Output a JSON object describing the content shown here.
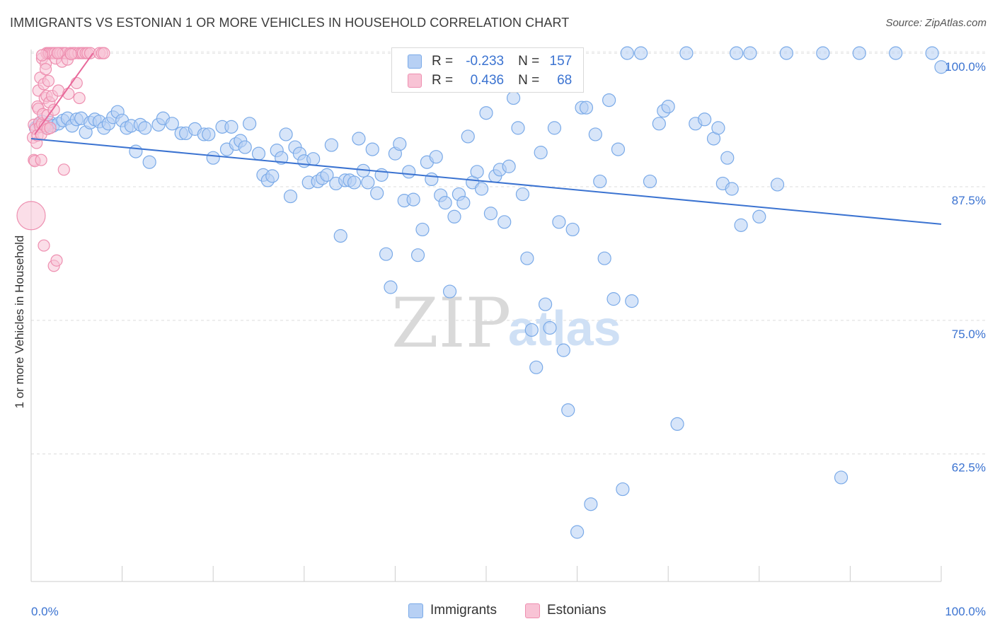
{
  "header": {
    "title": "IMMIGRANTS VS ESTONIAN 1 OR MORE VEHICLES IN HOUSEHOLD CORRELATION CHART",
    "source": "Source: ZipAtlas.com"
  },
  "watermark": {
    "zip": "ZIP",
    "atlas": "atlas"
  },
  "legend": {
    "rows": [
      {
        "r_label": "R =",
        "r_value": "-0.233",
        "n_label": "N =",
        "n_value": "157",
        "color": "#7aaae8",
        "fill": "#b7d0f4"
      },
      {
        "r_label": "R =",
        "r_value": "0.436",
        "n_label": "N =",
        "n_value": "68",
        "color": "#ee8fb0",
        "fill": "#f8c3d5"
      }
    ]
  },
  "bottom_legend": [
    {
      "label": "Immigrants",
      "color": "#7aaae8",
      "fill": "#b7d0f4"
    },
    {
      "label": "Estonians",
      "color": "#ee8fb0",
      "fill": "#f8c3d5"
    }
  ],
  "chart_data": {
    "type": "scatter",
    "title": "IMMIGRANTS VS ESTONIAN 1 OR MORE VEHICLES IN HOUSEHOLD CORRELATION CHART",
    "xlabel": "",
    "ylabel": "1 or more Vehicles in Household",
    "x_tick_labels": [
      "0.0%",
      "100.0%"
    ],
    "y_tick_labels": [
      "100.0%",
      "87.5%",
      "75.0%",
      "62.5%"
    ],
    "y_ticks": [
      100,
      87.5,
      75,
      62.5
    ],
    "xlim": [
      0,
      100
    ],
    "ylim": [
      50.7,
      101
    ],
    "grid": true,
    "legend_placement": "bottom",
    "series": [
      {
        "name": "Immigrants",
        "color": "#3b73d1",
        "point_color": "#7aaae8",
        "point_fill": "#b7d0f4",
        "trend": {
          "x": [
            0,
            100
          ],
          "y": [
            92.0,
            84.0
          ]
        },
        "points": [
          [
            0.5,
            93.0
          ],
          [
            0.9,
            93.4
          ],
          [
            1.2,
            93.6
          ],
          [
            1.5,
            93.1
          ],
          [
            1.8,
            93.3
          ],
          [
            2.1,
            93.5
          ],
          [
            2.4,
            93.2
          ],
          [
            3.0,
            93.4
          ],
          [
            3.5,
            93.7
          ],
          [
            4.0,
            93.9
          ],
          [
            4.5,
            93.2
          ],
          [
            5.0,
            93.8
          ],
          [
            5.5,
            93.9
          ],
          [
            6.0,
            92.6
          ],
          [
            6.5,
            93.5
          ],
          [
            7.0,
            93.8
          ],
          [
            7.5,
            93.6
          ],
          [
            8.0,
            93.0
          ],
          [
            8.5,
            93.4
          ],
          [
            9.0,
            94.0
          ],
          [
            9.5,
            94.5
          ],
          [
            10.0,
            93.7
          ],
          [
            10.5,
            93.0
          ],
          [
            11.0,
            93.2
          ],
          [
            11.5,
            90.8
          ],
          [
            12.0,
            93.3
          ],
          [
            12.5,
            93.0
          ],
          [
            13.0,
            89.8
          ],
          [
            14.0,
            93.3
          ],
          [
            14.5,
            93.9
          ],
          [
            15.5,
            93.4
          ],
          [
            16.5,
            92.5
          ],
          [
            17.0,
            92.5
          ],
          [
            18.0,
            92.9
          ],
          [
            19.0,
            92.4
          ],
          [
            19.5,
            92.4
          ],
          [
            20.0,
            90.2
          ],
          [
            21.0,
            93.1
          ],
          [
            21.5,
            91.0
          ],
          [
            22.0,
            93.1
          ],
          [
            22.5,
            91.5
          ],
          [
            23.0,
            91.8
          ],
          [
            23.5,
            91.2
          ],
          [
            24.0,
            93.4
          ],
          [
            25.0,
            90.6
          ],
          [
            25.5,
            88.6
          ],
          [
            26.0,
            88.1
          ],
          [
            26.5,
            88.5
          ],
          [
            27.0,
            90.9
          ],
          [
            27.5,
            90.2
          ],
          [
            28.0,
            92.4
          ],
          [
            28.5,
            86.6
          ],
          [
            29.0,
            91.2
          ],
          [
            29.5,
            90.6
          ],
          [
            30.0,
            89.9
          ],
          [
            30.5,
            87.9
          ],
          [
            31.0,
            90.1
          ],
          [
            31.5,
            88.0
          ],
          [
            32.0,
            88.3
          ],
          [
            32.5,
            88.6
          ],
          [
            33.0,
            91.4
          ],
          [
            33.5,
            87.8
          ],
          [
            34.0,
            82.9
          ],
          [
            34.5,
            88.1
          ],
          [
            35.0,
            88.1
          ],
          [
            35.5,
            87.9
          ],
          [
            36.0,
            92.0
          ],
          [
            36.5,
            89.0
          ],
          [
            37.0,
            87.9
          ],
          [
            37.5,
            91.0
          ],
          [
            38.0,
            86.9
          ],
          [
            38.5,
            88.6
          ],
          [
            39.0,
            81.2
          ],
          [
            39.5,
            78.1
          ],
          [
            40.0,
            90.6
          ],
          [
            40.5,
            91.5
          ],
          [
            41.0,
            86.2
          ],
          [
            41.5,
            88.9
          ],
          [
            42.0,
            86.3
          ],
          [
            42.5,
            81.1
          ],
          [
            43.0,
            83.5
          ],
          [
            43.5,
            89.8
          ],
          [
            44.0,
            88.2
          ],
          [
            44.5,
            90.3
          ],
          [
            45.0,
            86.7
          ],
          [
            45.5,
            86.0
          ],
          [
            46.0,
            77.7
          ],
          [
            46.5,
            84.7
          ],
          [
            47.0,
            86.8
          ],
          [
            47.5,
            86.0
          ],
          [
            48.0,
            92.2
          ],
          [
            48.5,
            87.9
          ],
          [
            49.0,
            88.9
          ],
          [
            49.5,
            87.3
          ],
          [
            50.0,
            94.4
          ],
          [
            50.5,
            85.0
          ],
          [
            51.0,
            88.5
          ],
          [
            51.5,
            89.1
          ],
          [
            52.0,
            84.2
          ],
          [
            52.5,
            89.4
          ],
          [
            53.0,
            95.8
          ],
          [
            53.5,
            93.0
          ],
          [
            54.0,
            86.8
          ],
          [
            54.5,
            80.8
          ],
          [
            55.0,
            74.1
          ],
          [
            55.5,
            70.6
          ],
          [
            56.0,
            90.7
          ],
          [
            56.5,
            76.5
          ],
          [
            57.0,
            74.3
          ],
          [
            57.5,
            93.0
          ],
          [
            58.0,
            84.2
          ],
          [
            58.5,
            72.2
          ],
          [
            59.0,
            66.6
          ],
          [
            59.5,
            83.5
          ],
          [
            60.0,
            55.2
          ],
          [
            60.5,
            94.9
          ],
          [
            61.0,
            94.9
          ],
          [
            61.5,
            57.8
          ],
          [
            62.0,
            92.4
          ],
          [
            62.5,
            88.0
          ],
          [
            63.0,
            80.8
          ],
          [
            63.5,
            95.6
          ],
          [
            64.0,
            77.0
          ],
          [
            64.5,
            91.0
          ],
          [
            65.0,
            59.2
          ],
          [
            65.5,
            100.0
          ],
          [
            66.0,
            76.8
          ],
          [
            67.0,
            100.0
          ],
          [
            68.0,
            88.0
          ],
          [
            69.0,
            93.4
          ],
          [
            69.5,
            94.6
          ],
          [
            70.0,
            95.0
          ],
          [
            71.0,
            65.3
          ],
          [
            72.0,
            100.0
          ],
          [
            73.0,
            93.4
          ],
          [
            74.0,
            93.8
          ],
          [
            75.0,
            92.0
          ],
          [
            75.5,
            93.0
          ],
          [
            76.0,
            87.8
          ],
          [
            76.5,
            90.2
          ],
          [
            77.0,
            87.3
          ],
          [
            77.5,
            100.0
          ],
          [
            78.0,
            83.9
          ],
          [
            79.0,
            100.0
          ],
          [
            80.0,
            84.7
          ],
          [
            82.0,
            87.7
          ],
          [
            83.0,
            100.0
          ],
          [
            87.0,
            100.0
          ],
          [
            89.0,
            60.3
          ],
          [
            91.0,
            100.0
          ],
          [
            95.0,
            100.0
          ],
          [
            99.0,
            100.0
          ],
          [
            100.0,
            98.7
          ]
        ]
      },
      {
        "name": "Estonians",
        "color": "#e8689a",
        "point_color": "#ee8fb0",
        "point_fill": "#f8c3d5",
        "trend": {
          "x": [
            0.4,
            6.8
          ],
          "y": [
            92.4,
            100.0
          ]
        },
        "points": [
          [
            0.2,
            92.1
          ],
          [
            0.3,
            93.3
          ],
          [
            0.3,
            90.0
          ],
          [
            0.4,
            89.9
          ],
          [
            0.5,
            92.9
          ],
          [
            0.6,
            91.6
          ],
          [
            0.7,
            92.3
          ],
          [
            0.7,
            95.0
          ],
          [
            0.8,
            96.5
          ],
          [
            0.8,
            94.8
          ],
          [
            0.9,
            93.5
          ],
          [
            1.0,
            97.7
          ],
          [
            1.0,
            93.1
          ],
          [
            1.1,
            92.4
          ],
          [
            1.1,
            90.0
          ],
          [
            1.2,
            99.5
          ],
          [
            1.2,
            93.4
          ],
          [
            1.3,
            94.3
          ],
          [
            1.4,
            97.1
          ],
          [
            1.4,
            82.0
          ],
          [
            1.5,
            95.8
          ],
          [
            1.5,
            93.2
          ],
          [
            1.6,
            99.0
          ],
          [
            1.6,
            98.5
          ],
          [
            1.7,
            100.0
          ],
          [
            1.7,
            96.0
          ],
          [
            1.8,
            94.2
          ],
          [
            1.8,
            92.9
          ],
          [
            1.9,
            100.0
          ],
          [
            1.9,
            97.4
          ],
          [
            2.0,
            100.0
          ],
          [
            2.0,
            95.4
          ],
          [
            2.1,
            93.0
          ],
          [
            2.2,
            100.0
          ],
          [
            2.3,
            96.0
          ],
          [
            2.4,
            100.0
          ],
          [
            2.5,
            94.7
          ],
          [
            2.5,
            80.1
          ],
          [
            2.6,
            100.0
          ],
          [
            2.7,
            99.5
          ],
          [
            2.8,
            80.6
          ],
          [
            3.0,
            96.5
          ],
          [
            3.0,
            100.0
          ],
          [
            3.2,
            100.0
          ],
          [
            3.4,
            99.2
          ],
          [
            3.5,
            100.0
          ],
          [
            3.6,
            89.1
          ],
          [
            3.8,
            100.0
          ],
          [
            4.0,
            99.4
          ],
          [
            4.1,
            96.2
          ],
          [
            4.3,
            100.0
          ],
          [
            4.6,
            100.0
          ],
          [
            4.8,
            100.0
          ],
          [
            5.0,
            97.2
          ],
          [
            5.2,
            100.0
          ],
          [
            5.3,
            95.8
          ],
          [
            5.5,
            100.0
          ],
          [
            5.7,
            100.0
          ],
          [
            6.0,
            100.0
          ],
          [
            6.2,
            100.0
          ],
          [
            6.5,
            100.0
          ],
          [
            7.5,
            100.0
          ],
          [
            7.8,
            100.0
          ],
          [
            8.0,
            100.0
          ],
          [
            1.2,
            99.8
          ],
          [
            2.9,
            100.0
          ],
          [
            4.4,
            99.9
          ],
          [
            0.0,
            84.8
          ]
        ]
      }
    ]
  }
}
